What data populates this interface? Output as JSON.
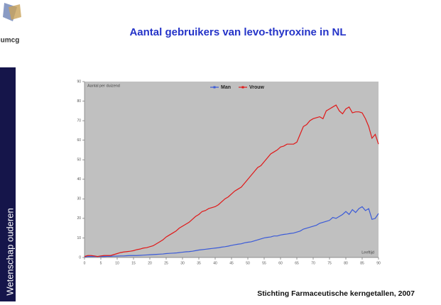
{
  "slide": {
    "logo_text": "umcg",
    "sidebar_text": "Wetenschap ouderen",
    "title": "Aantal gebruikers van levo-thyroxine in NL",
    "footer": "Stichting Farmaceutische kerngetallen, 2007"
  },
  "chart_data": {
    "type": "line",
    "y_label": "Aantal per duizend",
    "x_label": "Leeftijd",
    "x": [
      0,
      1,
      2,
      3,
      4,
      5,
      6,
      7,
      8,
      9,
      10,
      11,
      12,
      13,
      14,
      15,
      16,
      17,
      18,
      19,
      20,
      21,
      22,
      23,
      24,
      25,
      26,
      27,
      28,
      29,
      30,
      31,
      32,
      33,
      34,
      35,
      36,
      37,
      38,
      39,
      40,
      41,
      42,
      43,
      44,
      45,
      46,
      47,
      48,
      49,
      50,
      51,
      52,
      53,
      54,
      55,
      56,
      57,
      58,
      59,
      60,
      61,
      62,
      63,
      64,
      65,
      66,
      67,
      68,
      69,
      70,
      71,
      72,
      73,
      74,
      75,
      76,
      77,
      78,
      79,
      80,
      81,
      82,
      83,
      84,
      85,
      86,
      87,
      88,
      89,
      90
    ],
    "series": [
      {
        "name": "Man",
        "color": "#3a5ad8",
        "values": [
          0.3,
          0.5,
          0.5,
          0.5,
          0.5,
          0.5,
          0.5,
          0.6,
          0.6,
          0.7,
          0.7,
          0.8,
          0.8,
          0.9,
          1,
          1,
          1,
          1.1,
          1.2,
          1.3,
          1.4,
          1.5,
          1.6,
          1.7,
          1.8,
          2,
          2.1,
          2.2,
          2.3,
          2.5,
          2.7,
          2.9,
          3,
          3.2,
          3.5,
          3.8,
          4,
          4.2,
          4.4,
          4.6,
          4.8,
          5,
          5.3,
          5.5,
          5.8,
          6.2,
          6.5,
          6.8,
          7,
          7.5,
          7.8,
          8,
          8.5,
          9,
          9.5,
          10,
          10.3,
          10.5,
          11,
          11,
          11.5,
          11.8,
          12,
          12.3,
          12.5,
          13,
          13.5,
          14.5,
          15,
          15.5,
          16,
          16.5,
          17.5,
          18,
          18.5,
          19,
          20.5,
          20,
          21,
          22,
          23.5,
          22,
          24.5,
          23,
          25,
          26,
          24,
          25,
          19.5,
          20,
          22.5
        ]
      },
      {
        "name": "Vrouw",
        "color": "#e01818",
        "values": [
          0.5,
          1,
          1,
          0.8,
          0.5,
          0.8,
          1,
          1,
          1,
          1.5,
          2,
          2.5,
          2.8,
          3,
          3.2,
          3.5,
          4,
          4.3,
          4.8,
          5,
          5.5,
          6,
          7,
          8,
          9,
          10.5,
          11.5,
          12.5,
          13.5,
          15,
          16,
          17,
          18,
          19.5,
          21,
          22,
          23.5,
          24,
          25,
          25.5,
          26,
          27,
          28.5,
          30,
          31,
          32.5,
          34,
          35,
          36,
          38,
          40,
          42,
          44,
          46,
          47,
          49,
          51,
          53,
          54,
          55,
          56.5,
          57,
          58,
          58,
          58,
          59,
          63,
          67,
          68,
          70,
          71,
          71.5,
          72,
          71,
          75,
          76,
          77,
          78,
          75,
          73.5,
          76,
          77,
          74,
          74.5,
          74.5,
          74,
          71,
          67,
          61,
          63,
          58
        ]
      }
    ],
    "xlim": [
      0,
      90
    ],
    "ylim": [
      0,
      90
    ],
    "xticks": [
      0,
      5,
      10,
      15,
      20,
      25,
      30,
      35,
      40,
      45,
      50,
      55,
      60,
      65,
      70,
      75,
      80,
      85,
      90
    ],
    "yticks": [
      0,
      10,
      20,
      30,
      40,
      50,
      60,
      70,
      80,
      90
    ],
    "grid": false,
    "legend": "top",
    "plot_background": "#c0c0c0"
  }
}
